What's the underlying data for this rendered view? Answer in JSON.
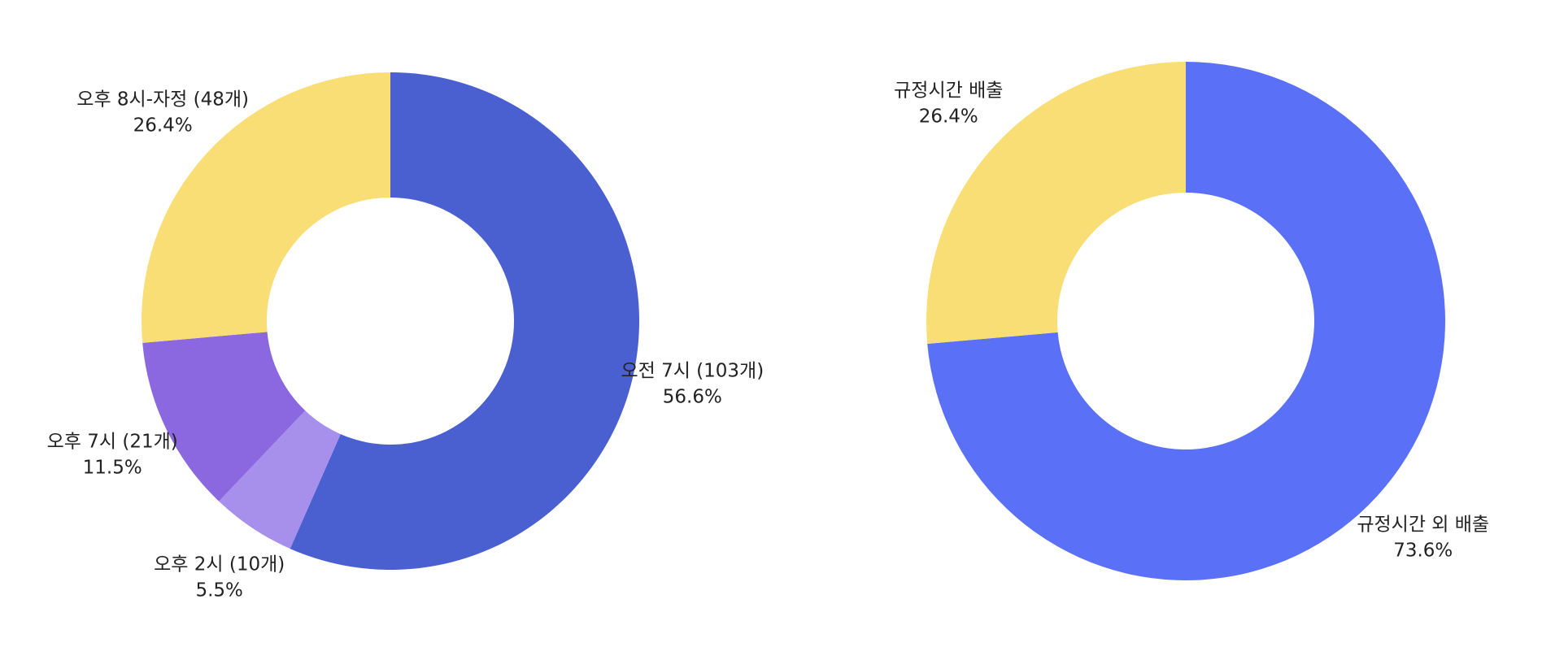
{
  "chart_data": [
    {
      "type": "donut",
      "categories": [
        "오전 7시 (103개)",
        "오후 2시 (10개)",
        "오후 7시 (21개)",
        "오후 8시-자정 (48개)"
      ],
      "values": [
        56.6,
        5.5,
        11.5,
        26.4
      ],
      "value_labels": [
        "56.6%",
        "5.5%",
        "11.5%",
        "26.4%"
      ],
      "colors": [
        "#4a5fd0",
        "#a78fec",
        "#8b68e0",
        "#f8de75"
      ]
    },
    {
      "type": "donut",
      "categories": [
        "규정시간 외 배출",
        "규정시간 배출"
      ],
      "values": [
        73.6,
        26.4
      ],
      "value_labels": [
        "73.6%",
        "26.4%"
      ],
      "colors": [
        "#5a70f6",
        "#f8de75"
      ]
    }
  ]
}
